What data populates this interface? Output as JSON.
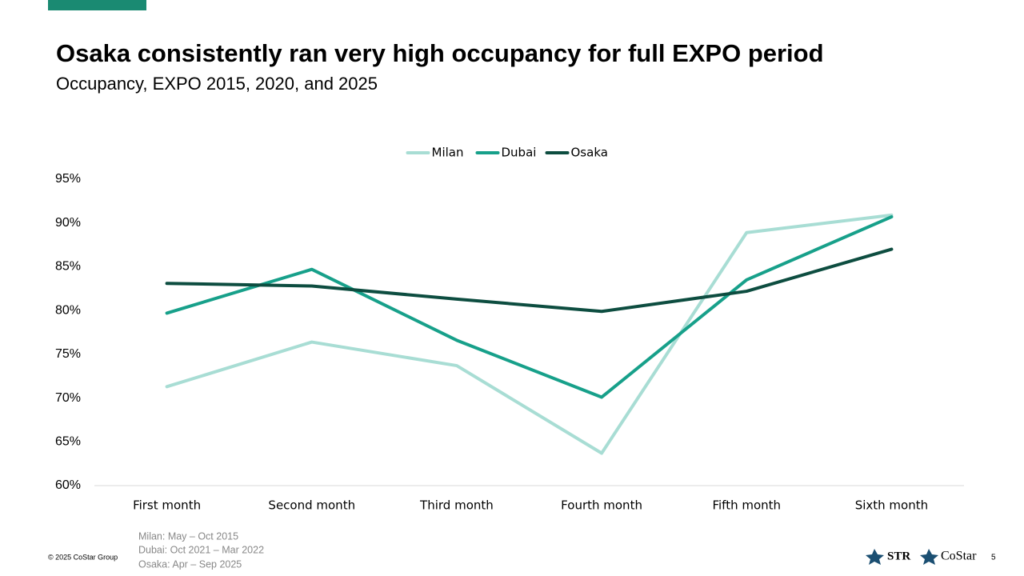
{
  "chart_data": {
    "type": "line",
    "title": "Osaka consistently ran very high occupancy for full EXPO period",
    "subtitle": "Occupancy, EXPO 2015, 2020, and 2025",
    "categories": [
      "First month",
      "Second month",
      "Third month",
      "Fourth month",
      "Fifth month",
      "Sixth month"
    ],
    "series": [
      {
        "name": "Milan",
        "color": "#a8ddd4",
        "values": [
          71.3,
          76.4,
          73.7,
          63.7,
          88.9,
          90.9
        ]
      },
      {
        "name": "Dubai",
        "color": "#17a08a",
        "values": [
          79.7,
          84.7,
          76.6,
          70.1,
          83.5,
          90.7
        ]
      },
      {
        "name": "Osaka",
        "color": "#0d4d40",
        "values": [
          83.1,
          82.8,
          81.3,
          79.9,
          82.2,
          87.0
        ]
      }
    ],
    "ylim": [
      60,
      95
    ],
    "yticks": [
      {
        "value": 60,
        "label": "60%"
      },
      {
        "value": 65,
        "label": "65%"
      },
      {
        "value": 70,
        "label": "70%"
      },
      {
        "value": 75,
        "label": "75%"
      },
      {
        "value": 80,
        "label": "80%"
      },
      {
        "value": 85,
        "label": "85%"
      },
      {
        "value": 90,
        "label": "90%"
      },
      {
        "value": 95,
        "label": "95%"
      }
    ],
    "grid": false,
    "legend": "top"
  },
  "footnotes": [
    "Milan: May – Oct 2015",
    "Dubai: Oct 2021 – Mar 2022",
    "Osaka: Apr – Sep 2025"
  ],
  "footer": {
    "copyright": "© 2025 CoStar Group",
    "page": "5",
    "logos": [
      "STR",
      "CoStar"
    ]
  }
}
